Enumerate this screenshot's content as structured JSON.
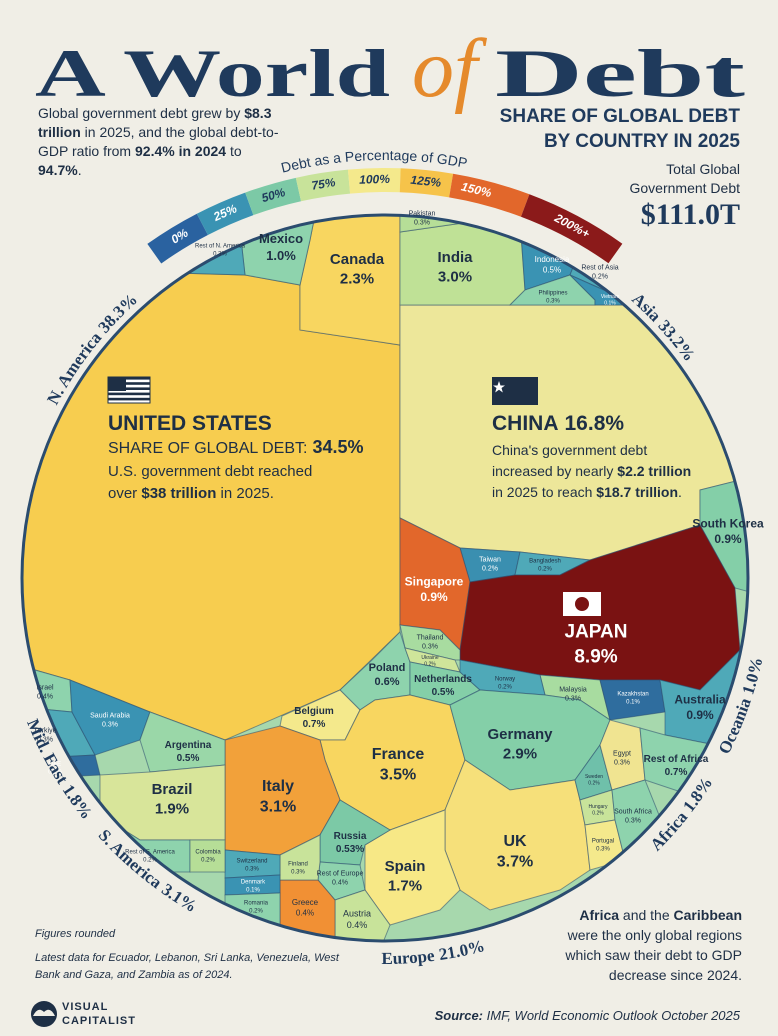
{
  "chart_data": {
    "type": "voronoi",
    "title": [
      "A World",
      "of",
      "Debt"
    ],
    "subtitle": [
      "SHARE OF GLOBAL DEBT",
      "BY COUNTRY IN 2025"
    ],
    "total_label": "Total Global Government Debt",
    "total": "$111.0T",
    "intro": [
      {
        "text": "Global government debt grew by ",
        "bold": false
      },
      {
        "text": "$8.3 trillion",
        "bold": true
      },
      {
        "text": " in 2025, and the global debt-to-GDP ratio from ",
        "bold": false
      },
      {
        "text": "92.4% in 2024",
        "bold": true
      },
      {
        "text": " to ",
        "bold": false
      },
      {
        "text": "94.7%",
        "bold": true
      },
      {
        "text": ".",
        "bold": false
      }
    ],
    "legend": {
      "title": "Debt as a Percentage of GDP",
      "ticks": [
        {
          "value": 0,
          "label": "0%"
        },
        {
          "value": 25,
          "label": "25%"
        },
        {
          "value": 50,
          "label": "50%"
        },
        {
          "value": 75,
          "label": "75%"
        },
        {
          "value": 100,
          "label": "100%"
        },
        {
          "value": 125,
          "label": "125%"
        },
        {
          "value": 150,
          "label": "150%"
        },
        {
          "value": 200,
          "label": "200%+"
        }
      ],
      "colors": [
        "#2a62a0",
        "#3a93b3",
        "#7cc9a6",
        "#c8e39a",
        "#f4e98c",
        "#f6c34a",
        "#e2672b",
        "#8b1a1a"
      ]
    },
    "categories": [
      "UNITED STATES",
      "Canada",
      "Mexico",
      "Rest of N. America",
      "CHINA",
      "India",
      "Pakistan",
      "Indonesia",
      "Rest of Asia",
      "Philippines",
      "Vietnam",
      "Taiwan",
      "Bangladesh",
      "Singapore",
      "South Korea",
      "JAPAN",
      "Thailand",
      "Malaysia",
      "Kazakhstan",
      "Australia",
      "Poland",
      "Ukraine",
      "Netherlands",
      "Norway",
      "Belgium",
      "France",
      "Germany",
      "Italy",
      "UK",
      "Spain",
      "Russia",
      "Rest of Europe",
      "Austria",
      "Greece",
      "Finland",
      "Switzerland",
      "Denmark",
      "Romania",
      "Sweden",
      "Hungary",
      "Portugal",
      "Egypt",
      "Rest of Africa",
      "South Africa",
      "Israel",
      "Türkiye",
      "Saudi Arabia",
      "UAE",
      "Argentina",
      "Brazil",
      "Rest of S. America",
      "Colombia"
    ],
    "values": [
      34.5,
      2.3,
      1.0,
      0.3,
      16.8,
      3.0,
      0.3,
      0.5,
      0.2,
      0.3,
      0.1,
      0.2,
      0.2,
      0.9,
      0.9,
      8.9,
      0.3,
      0.3,
      0.1,
      0.9,
      0.6,
      0.2,
      0.5,
      0.2,
      0.7,
      3.5,
      2.9,
      3.1,
      3.7,
      1.7,
      0.53,
      0.4,
      0.4,
      0.4,
      0.3,
      0.3,
      0.1,
      0.2,
      0.2,
      0.2,
      0.3,
      0.3,
      0.7,
      0.3,
      0.4,
      0.3,
      0.3,
      0.2,
      0.5,
      1.9,
      0.2,
      0.2
    ],
    "value_labels": [
      "34.5%",
      "2.3%",
      "1.0%",
      "0.3%",
      "16.8%",
      "3.0%",
      "0.3%",
      "0.5%",
      "0.2%",
      "0.3%",
      "0.1%",
      "0.2%",
      "0.2%",
      "0.9%",
      "0.9%",
      "8.9%",
      "0.3%",
      "0.3%",
      "0.1%",
      "0.9%",
      "0.6%",
      "0.2%",
      "0.5%",
      "0.2%",
      "0.7%",
      "3.5%",
      "2.9%",
      "3.1%",
      "3.7%",
      "1.7%",
      "0.53%",
      "0.4%",
      "0.4%",
      "0.4%",
      "0.3%",
      "0.3%",
      "0.1%",
      "0.2%",
      "0.2%",
      "0.2%",
      "0.3%",
      "0.3%",
      "0.7%",
      "0.3%",
      "0.4%",
      "0.3%",
      "0.3%",
      "0.2%",
      "0.5%",
      "1.9%",
      "0.2%",
      "0.2%"
    ],
    "colors": [
      "#f7cd4f",
      "#f8d660",
      "#8ed3ad",
      "#4fa9b8",
      "#ede79a",
      "#bfe196",
      "#b6de97",
      "#3a93b3",
      "#4fa9b8",
      "#8ed3ad",
      "#3a93b3",
      "#3a8fb0",
      "#4fa9b8",
      "#e2672b",
      "#84cfa8",
      "#7a1212",
      "#a8dca0",
      "#a8dca0",
      "#2f6d9e",
      "#4fa9b8",
      "#8ed3ad",
      "#cfe59a",
      "#84cfa8",
      "#4fa9b8",
      "#f4e98c",
      "#f8d660",
      "#84cfa8",
      "#f2a13a",
      "#f6e07a",
      "#f7e886",
      "#7cc9a6",
      "#8ed3ad",
      "#c8e39a",
      "#f19034",
      "#c8e39a",
      "#4fa9b8",
      "#3a93b3",
      "#8ed3ad",
      "#6fc0aa",
      "#c8e39a",
      "#f4e98c",
      "#f0e491",
      "#8ed3ad",
      "#8ed3ad",
      "#8ed3ad",
      "#4fa9b8",
      "#3a93b3",
      "#2f6d9e",
      "#9ad7a8",
      "#d8e59a",
      "#8ed3ad",
      "#b6de97"
    ],
    "regions": {
      "names": [
        "N. America",
        "Asia",
        "Oceania",
        "Africa",
        "Europe",
        "S. America",
        "Mid. East"
      ],
      "values": [
        38.3,
        33.2,
        1.0,
        1.8,
        21.0,
        3.1,
        1.8
      ],
      "value_labels": [
        "38.3%",
        "33.2%",
        "1.0%",
        "1.8%",
        "21.0%",
        "3.1%",
        "1.8%"
      ]
    },
    "annotations": {
      "us_share_prefix": "SHARE OF GLOBAL DEBT:",
      "us_note": [
        {
          "text": "U.S. government debt reached over ",
          "bold": false
        },
        {
          "text": "$38 trillion",
          "bold": true
        },
        {
          "text": " in 2025.",
          "bold": false
        }
      ],
      "china_note": [
        {
          "text": "China's government debt increased by nearly ",
          "bold": false
        },
        {
          "text": "$2.2 trillion",
          "bold": true
        },
        {
          "text": " in 2025 to reach ",
          "bold": false
        },
        {
          "text": "$18.7 trillion",
          "bold": true
        },
        {
          "text": ".",
          "bold": false
        }
      ],
      "africa_note": [
        {
          "text": "Africa",
          "bold": true
        },
        {
          "text": " and the ",
          "bold": false
        },
        {
          "text": "Caribbean",
          "bold": true
        },
        {
          "text": " were the only global regions which saw their debt to GDP decrease since 2024.",
          "bold": false
        }
      ],
      "figures_rounded": "Figures rounded",
      "latest_data": "Latest data for Ecuador, Lebanon, Sri Lanka, Venezuela, West Bank and Gaza, and Zambia as of 2024.",
      "source": [
        {
          "text": "Source:",
          "bold": true
        },
        {
          "text": " IMF, World Economic Outlook October 2025",
          "bold": false
        }
      ]
    },
    "brand": [
      "VISUAL",
      "CAPITALIST"
    ]
  }
}
